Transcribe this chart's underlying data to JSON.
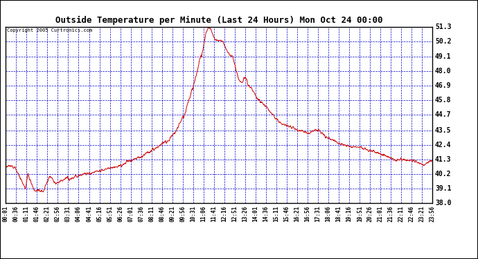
{
  "title": "Outside Temperature per Minute (Last 24 Hours) Mon Oct 24 00:00",
  "copyright": "Copyright 2005 Curtronics.com",
  "ymin": 38.0,
  "ymax": 51.3,
  "yticks": [
    38.0,
    39.1,
    40.2,
    41.3,
    42.4,
    43.5,
    44.7,
    45.8,
    46.9,
    48.0,
    49.1,
    50.2,
    51.3
  ],
  "background_color": "#ffffff",
  "grid_color": "#0000cc",
  "line_color": "#cc0000",
  "title_color": "#000000",
  "xtick_labels": [
    "00:01",
    "00:36",
    "01:11",
    "01:46",
    "02:21",
    "02:56",
    "03:31",
    "04:06",
    "04:41",
    "05:16",
    "05:51",
    "06:26",
    "07:01",
    "07:36",
    "08:11",
    "08:46",
    "09:21",
    "09:56",
    "10:31",
    "11:06",
    "11:41",
    "12:16",
    "12:51",
    "13:26",
    "14:01",
    "14:36",
    "15:11",
    "15:46",
    "16:21",
    "16:56",
    "17:31",
    "18:06",
    "18:41",
    "19:16",
    "19:51",
    "20:26",
    "21:01",
    "21:36",
    "22:11",
    "22:46",
    "23:21",
    "23:56"
  ]
}
